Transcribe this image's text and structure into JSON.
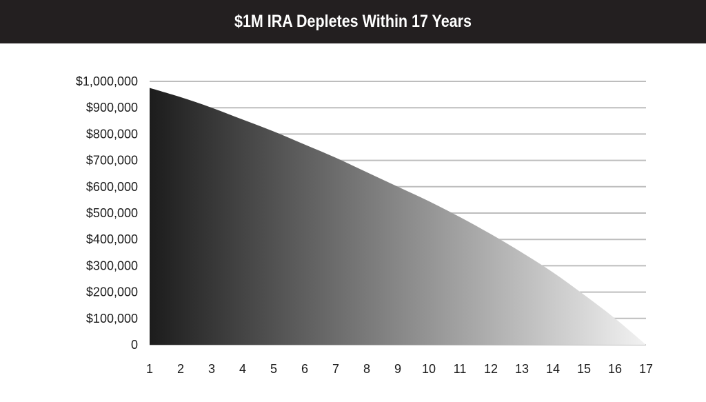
{
  "title_bar": {
    "background": "#231f20"
  },
  "chart_data": {
    "type": "area",
    "title": "$1M IRA Depletes Within 17 Years",
    "xlabel": "",
    "ylabel": "",
    "x": [
      1,
      2,
      3,
      4,
      5,
      6,
      7,
      8,
      9,
      10,
      11,
      12,
      13,
      14,
      15,
      16,
      17
    ],
    "series": [
      {
        "values": [
          975000,
          940000,
          900000,
          855000,
          810000,
          760000,
          710000,
          655000,
          600000,
          545000,
          485000,
          420000,
          350000,
          275000,
          190000,
          100000,
          0
        ]
      }
    ],
    "ylim": [
      0,
      1000000
    ],
    "xlim": [
      1,
      17
    ],
    "y_ticks": [
      "0",
      "$100,000",
      "$200,000",
      "$300,000",
      "$400,000",
      "$500,000",
      "$600,000",
      "$700,000",
      "$800,000",
      "$900,000",
      "$1,000,000"
    ],
    "x_ticks": [
      "1",
      "2",
      "3",
      "4",
      "5",
      "6",
      "7",
      "8",
      "9",
      "10",
      "11",
      "12",
      "13",
      "14",
      "15",
      "16",
      "17"
    ],
    "grid": true,
    "legend": "none",
    "gradient": {
      "start": "#1c1c1c",
      "end": "#f2f2f2"
    },
    "grid_color": "#bdbdbd"
  }
}
